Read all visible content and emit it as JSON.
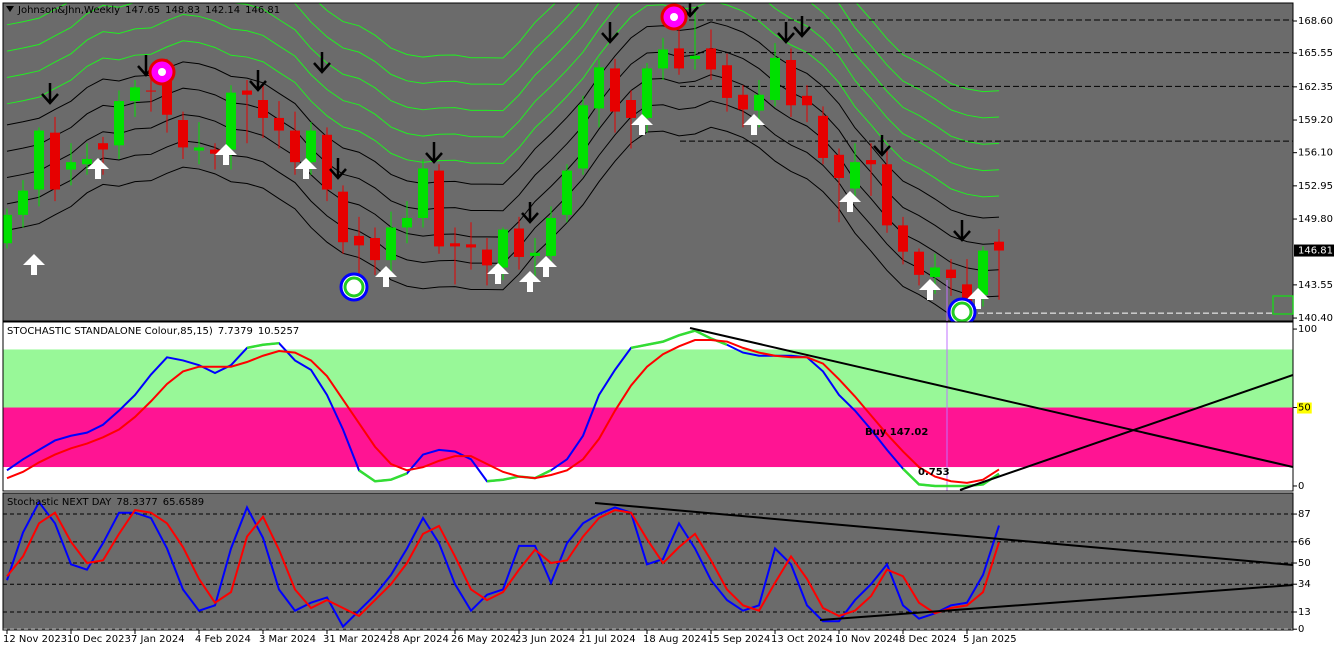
{
  "chart_data": [
    {
      "type": "candlestick",
      "title": "Johnson&Jhn,Weekly",
      "categories": [
        "12 Nov 2023",
        null,
        null,
        null,
        "10 Dec 2023",
        null,
        null,
        null,
        "7 Jan 2024",
        null,
        null,
        null,
        "4 Feb 2024",
        null,
        null,
        null,
        "3 Mar 2024",
        null,
        null,
        null,
        "31 Mar 2024",
        null,
        null,
        null,
        "28 Apr 2024",
        null,
        null,
        null,
        "26 May 2024",
        null,
        null,
        null,
        "23 Jun 2024",
        null,
        null,
        null,
        "21 Jul 2024",
        null,
        null,
        null,
        "18 Aug 2024",
        null,
        null,
        null,
        "15 Sep 2024",
        null,
        null,
        null,
        "13 Oct 2024",
        null,
        null,
        null,
        "10 Nov 2024",
        null,
        null,
        null,
        "8 Dec 2024",
        null,
        null,
        null,
        "5 Jan 2025",
        null,
        null
      ],
      "open": [
        147.5,
        150.2,
        152.6,
        158.0,
        154.5,
        155.0,
        157.0,
        156.8,
        161.0,
        162.0,
        164.4,
        159.2,
        156.3,
        156.4,
        156.4,
        162.0,
        161.1,
        159.4,
        158.2,
        155.2,
        157.8,
        152.4,
        148.2,
        148.0,
        145.9,
        149.0,
        149.9,
        154.4,
        147.5,
        147.4,
        146.9,
        145.2,
        148.9,
        146.3,
        146.3,
        150.2,
        154.6,
        160.3,
        164.1,
        161.1,
        159.4,
        164.1,
        166.0,
        165.0,
        166.0,
        164.4,
        161.6,
        160.1,
        161.1,
        164.9,
        161.5,
        159.6,
        155.9,
        152.7,
        155.4,
        155.0,
        149.2,
        146.7,
        144.3,
        145.0,
        143.6,
        142.6,
        147.65
      ],
      "high": [
        150.8,
        153.5,
        158.5,
        159.5,
        157,
        157,
        157.6,
        162,
        163,
        164,
        165,
        160,
        159,
        157,
        162.5,
        163,
        162.5,
        161,
        160,
        159,
        158.5,
        153,
        150,
        149,
        150.5,
        151.5,
        155.5,
        155,
        149,
        149.5,
        148,
        149,
        150,
        148,
        151,
        155,
        161.5,
        165,
        165,
        162,
        164.6,
        167,
        168.5,
        169.5,
        167.8,
        165.5,
        162.5,
        163,
        166.5,
        166,
        162.5,
        160.5,
        156.5,
        157,
        157,
        156.5,
        150,
        147,
        146.5,
        146,
        146,
        147.2,
        148.83
      ],
      "low": [
        147.0,
        149.0,
        151.0,
        151.5,
        153,
        154,
        154,
        155.5,
        159.5,
        160,
        158,
        155.5,
        155,
        154.5,
        154.5,
        157,
        157.5,
        156.5,
        154,
        154,
        151.5,
        146.5,
        143.8,
        144.5,
        144.5,
        147.5,
        149,
        146.5,
        143.6,
        145,
        143.5,
        144,
        145,
        144,
        145.5,
        149.5,
        154,
        158.5,
        158,
        156.5,
        158,
        163,
        163.5,
        164,
        163,
        160,
        158.5,
        158.5,
        160.5,
        159.5,
        159,
        155,
        149.5,
        151.5,
        152,
        148.5,
        145.5,
        143.5,
        142.7,
        142.5,
        140.5,
        141.5,
        142.14
      ],
      "close": [
        150.2,
        152.5,
        158.2,
        152.6,
        155.2,
        155.5,
        156.4,
        161.0,
        162.3,
        161.9,
        159.7,
        156.6,
        156.6,
        156.0,
        161.8,
        161.6,
        159.4,
        158.2,
        155.2,
        158.2,
        152.6,
        147.6,
        147.3,
        145.9,
        149.0,
        149.9,
        154.6,
        147.2,
        147.2,
        147.1,
        145.4,
        148.8,
        146.2,
        146.6,
        149.9,
        154.4,
        160.6,
        164.2,
        160.0,
        159.4,
        164.1,
        165.9,
        164.1,
        165.3,
        164.0,
        161.3,
        160.2,
        161.6,
        165.1,
        160.6,
        160.6,
        155.6,
        153.7,
        155.2,
        155.0,
        149.2,
        146.7,
        144.5,
        145.2,
        144.2,
        141.9,
        146.8,
        146.81
      ],
      "up_color": "#00e000",
      "down_color": "#e60000",
      "ylim": [
        140.12,
        170.31
      ],
      "yticks": [
        {
          "value": 140.4,
          "label": "140.40"
        },
        {
          "value": 143.55,
          "label": "143.55"
        },
        {
          "value": 149.8,
          "label": "149.80"
        },
        {
          "value": 152.95,
          "label": "152.95"
        },
        {
          "value": 156.1,
          "label": "156.10"
        },
        {
          "value": 159.2,
          "label": "159.20"
        },
        {
          "value": 162.35,
          "label": "162.35"
        },
        {
          "value": 165.55,
          "label": "165.55"
        },
        {
          "value": 168.6,
          "label": "168.60"
        }
      ],
      "levels": [
        168.7,
        165.6,
        162.4,
        157.2
      ],
      "support_level": 140.87
    },
    {
      "type": "line",
      "title": "STOCHASTIC STANDALONE Colour,85,15)",
      "series": [
        {
          "color": "#0000ff",
          "highlight_color": "#33dd33",
          "values": [
            10,
            17,
            23,
            29,
            32,
            34,
            39,
            48,
            58,
            71,
            82,
            80,
            77,
            72,
            77,
            88,
            90,
            91,
            80,
            74,
            58,
            36,
            10,
            3,
            4,
            8,
            20,
            23,
            22,
            17,
            3,
            4,
            6,
            5,
            10,
            17,
            32,
            58,
            74,
            88,
            90,
            92,
            96,
            99,
            94,
            90,
            85,
            83,
            83,
            83,
            82,
            73,
            58,
            48,
            36,
            23,
            11,
            1,
            0,
            0,
            0,
            1,
            7.7379
          ]
        },
        {
          "color": "#ff0000",
          "values": [
            5,
            9,
            15,
            20,
            24,
            27,
            31,
            36,
            44,
            54,
            65,
            73,
            76,
            76,
            76,
            79,
            83,
            86,
            85,
            80,
            70,
            55,
            40,
            25,
            14,
            10,
            12,
            16,
            19,
            19,
            14,
            9,
            6,
            5,
            7,
            10,
            17,
            30,
            48,
            64,
            76,
            84,
            89,
            93,
            93,
            92,
            88,
            85,
            83,
            82,
            82,
            78,
            68,
            57,
            45,
            33,
            22,
            12,
            6,
            3,
            2,
            4,
            10.5257
          ]
        }
      ],
      "zones": [
        {
          "from": 87,
          "to": 104.5,
          "color": "#ffffff"
        },
        {
          "from": 50,
          "to": 87,
          "color": "#98f898"
        },
        {
          "from": 12,
          "to": 50,
          "color": "#ff1493"
        },
        {
          "from": -3.2,
          "to": 12,
          "color": "#ffffff"
        }
      ],
      "ylim": [
        -3.2,
        104.5
      ],
      "yticks": [
        0,
        50,
        100
      ],
      "annotations": [
        "Buy 147.02",
        "0.753"
      ]
    },
    {
      "type": "line",
      "title": "Stochastic NEXT DAY",
      "series": [
        {
          "color": "#0000ff",
          "values": [
            37,
            73,
            96,
            80,
            49,
            45,
            65,
            88,
            88,
            84,
            61,
            30,
            14,
            18,
            61,
            92,
            69,
            30,
            14,
            20,
            24,
            2,
            14,
            26,
            41,
            61,
            84,
            65,
            34,
            14,
            26,
            30,
            63,
            63,
            35,
            65,
            80,
            87,
            92,
            88,
            49,
            53,
            80,
            61,
            37,
            22,
            14,
            18,
            61,
            49,
            18,
            6,
            6,
            22,
            34,
            49,
            18,
            8,
            12,
            18,
            20,
            41,
            78.3377
          ]
        },
        {
          "color": "#ff0000",
          "values": [
            40,
            55,
            80,
            88,
            66,
            50,
            52,
            72,
            90,
            88,
            80,
            62,
            38,
            20,
            28,
            70,
            85,
            60,
            30,
            16,
            22,
            16,
            10,
            22,
            34,
            50,
            72,
            78,
            55,
            30,
            22,
            28,
            45,
            60,
            50,
            52,
            70,
            84,
            90,
            88,
            68,
            50,
            62,
            72,
            52,
            30,
            18,
            14,
            35,
            55,
            38,
            16,
            10,
            14,
            25,
            45,
            40,
            20,
            12,
            16,
            18,
            28,
            65.6589
          ]
        }
      ],
      "ylim": [
        -0.6,
        102.9
      ],
      "yticks": [
        0,
        13,
        34,
        50,
        66,
        87
      ]
    }
  ]
}
